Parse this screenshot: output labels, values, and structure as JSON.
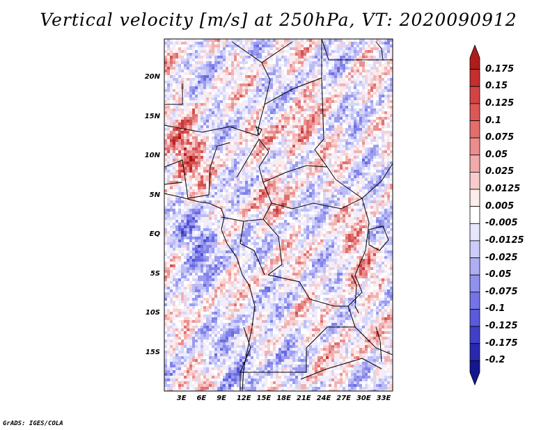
{
  "title": "Vertical velocity [m/s] at 250hPa, VT: 2020090912",
  "credit": "GrADS: IGES/COLA",
  "map": {
    "lat_labels": [
      {
        "label": "20N",
        "lat": 20
      },
      {
        "label": "15N",
        "lat": 15
      },
      {
        "label": "10N",
        "lat": 10
      },
      {
        "label": "5N",
        "lat": 5
      },
      {
        "label": "EQ",
        "lat": 0
      },
      {
        "label": "5S",
        "lat": -5
      },
      {
        "label": "10S",
        "lat": -10
      },
      {
        "label": "15S",
        "lat": -15
      }
    ],
    "lon_labels": [
      {
        "label": "3E",
        "lon": 3
      },
      {
        "label": "6E",
        "lon": 6
      },
      {
        "label": "9E",
        "lon": 9
      },
      {
        "label": "12E",
        "lon": 12
      },
      {
        "label": "15E",
        "lon": 15
      },
      {
        "label": "18E",
        "lon": 18
      },
      {
        "label": "21E",
        "lon": 21
      },
      {
        "label": "24E",
        "lon": 24
      },
      {
        "label": "27E",
        "lon": 27
      },
      {
        "label": "30E",
        "lon": 30
      },
      {
        "label": "33E",
        "lon": 33
      }
    ],
    "lon_range": [
      0.2,
      34.5
    ],
    "lat_range": [
      -19.8,
      25
    ],
    "colors": {
      "neutral": "#ffffff",
      "pos": [
        "#fcecec",
        "#f9d0d0",
        "#f2b2b2",
        "#ea9090",
        "#e07070",
        "#d65050",
        "#c83838",
        "#b82424",
        "#a61616"
      ],
      "neg": [
        "#eeeeff",
        "#d6d6fb",
        "#bcbcf6",
        "#9c9cf0",
        "#8282ea",
        "#6a6ae0",
        "#5252d2",
        "#3838c0",
        "#2424a8",
        "#161690"
      ]
    },
    "hotspots": [
      {
        "lon": 3,
        "lat": 10.5,
        "sign": 1,
        "strength": 0.9
      },
      {
        "lon": 20,
        "lat": 12.5,
        "sign": 1,
        "strength": 0.6
      },
      {
        "lon": 29,
        "lat": -2,
        "sign": 1,
        "strength": 0.4
      },
      {
        "lon": 15,
        "lat": 4,
        "sign": 1,
        "strength": 0.3
      },
      {
        "lon": 6,
        "lat": -1,
        "sign": -1,
        "strength": 0.7
      },
      {
        "lon": 12,
        "lat": -16,
        "sign": -1,
        "strength": 0.5
      },
      {
        "lon": 28,
        "lat": -13,
        "sign": 1,
        "strength": 0.3
      }
    ]
  },
  "colorbar": {
    "labels": [
      "0.175",
      "0.15",
      "0.125",
      "0.1",
      "0.075",
      "0.05",
      "0.025",
      "0.0125",
      "0.005",
      "-0.005",
      "-0.0125",
      "-0.025",
      "-0.05",
      "-0.075",
      "-0.1",
      "-0.125",
      "-0.175",
      "-0.2"
    ],
    "colors": [
      "#b01c1c",
      "#c42e2e",
      "#d24444",
      "#dc5858",
      "#e46e6e",
      "#ec8c8c",
      "#f2aaaa",
      "#f8cccc",
      "#fcecec",
      "#ffffff",
      "#e6e6fd",
      "#ccccfa",
      "#aeaef5",
      "#9090ee",
      "#7474e6",
      "#5a5adc",
      "#4040c8",
      "#2828b0",
      "#16168e"
    ]
  }
}
